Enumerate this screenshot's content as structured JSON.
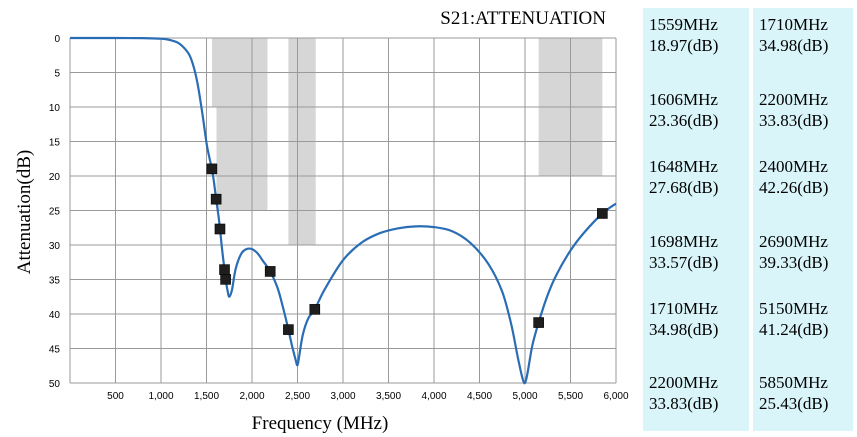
{
  "chart_data": {
    "type": "line",
    "title": "S21:ATTENUATION",
    "xlabel": "Frequency (MHz)",
    "ylabel": "Attenuation(dB)",
    "xlim": [
      0,
      6000
    ],
    "ylim": [
      0,
      50
    ],
    "y_inverted": true,
    "grid": true,
    "x_ticks": [
      "500",
      "1,000",
      "1,500",
      "2,000",
      "2,500",
      "3,000",
      "3,500",
      "4,000",
      "4,500",
      "5,000",
      "5,500",
      "6,000"
    ],
    "x_tick_values": [
      500,
      1000,
      1500,
      2000,
      2500,
      3000,
      3500,
      4000,
      4500,
      5000,
      5500,
      6000
    ],
    "y_ticks": [
      "0",
      "5",
      "10",
      "15",
      "20",
      "25",
      "30",
      "35",
      "40",
      "45",
      "50"
    ],
    "y_tick_values": [
      0,
      5,
      10,
      15,
      20,
      25,
      30,
      35,
      40,
      45,
      50
    ],
    "curve": {
      "x": [
        0,
        500,
        800,
        1000,
        1100,
        1200,
        1300,
        1350,
        1400,
        1450,
        1500,
        1530,
        1559,
        1580,
        1606,
        1630,
        1648,
        1670,
        1698,
        1710,
        1730,
        1750,
        1780,
        1820,
        1880,
        1940,
        2000,
        2060,
        2120,
        2200,
        2280,
        2340,
        2400,
        2440,
        2480,
        2500,
        2520,
        2560,
        2620,
        2690,
        2800,
        3000,
        3200,
        3400,
        3600,
        3800,
        4000,
        4200,
        4400,
        4600,
        4750,
        4850,
        4920,
        4970,
        5000,
        5030,
        5080,
        5150,
        5250,
        5350,
        5500,
        5650,
        5850,
        6000
      ],
      "y": [
        0,
        0,
        0.02,
        0.1,
        0.3,
        0.8,
        2.2,
        3.8,
        6.5,
        10.5,
        15.2,
        17.2,
        18.97,
        20.7,
        23.36,
        25.6,
        27.68,
        30.5,
        33.57,
        34.98,
        36.5,
        37.5,
        36.5,
        33.5,
        31.3,
        30.6,
        30.6,
        31.2,
        32.3,
        33.83,
        36.2,
        39.0,
        42.26,
        44.6,
        46.7,
        47.4,
        46.0,
        42.9,
        40.6,
        39.33,
        36.4,
        32.2,
        29.7,
        28.3,
        27.6,
        27.3,
        27.4,
        28.0,
        29.7,
        32.8,
        36.8,
        41.6,
        46.2,
        49.2,
        50.0,
        48.4,
        44.6,
        41.24,
        37.2,
        34.2,
        30.8,
        28.2,
        25.43,
        24.0
      ]
    },
    "markers": [
      {
        "x": 1559,
        "y": 18.97
      },
      {
        "x": 1606,
        "y": 23.36
      },
      {
        "x": 1648,
        "y": 27.68
      },
      {
        "x": 1698,
        "y": 33.57
      },
      {
        "x": 1710,
        "y": 34.98
      },
      {
        "x": 2200,
        "y": 33.83
      },
      {
        "x": 2400,
        "y": 42.26
      },
      {
        "x": 2690,
        "y": 39.33
      },
      {
        "x": 5150,
        "y": 41.24
      },
      {
        "x": 5850,
        "y": 25.43
      }
    ],
    "spec_masks": [
      {
        "x0": 1560,
        "x1": 1610,
        "ytop": 0,
        "ybottom": 10,
        "color": "#d6d6d6"
      },
      {
        "x0": 1610,
        "x1": 2170,
        "ytop": 0,
        "ybottom": 25,
        "color": "#d6d6d6"
      },
      {
        "x0": 2400,
        "x1": 2700,
        "ytop": 0,
        "ybottom": 30,
        "color": "#d6d6d6"
      },
      {
        "x0": 5150,
        "x1": 5850,
        "ytop": 0,
        "ybottom": 20,
        "color": "#d6d6d6"
      }
    ],
    "colors": {
      "curve": "#2a6db5",
      "marker": "#1e1e1e",
      "grid": "#9a9a9a",
      "panel": "#d9f5fa"
    }
  },
  "table": {
    "left": [
      {
        "freq": "1559MHz",
        "att": "18.97(dB)"
      },
      {
        "freq": "1606MHz",
        "att": "23.36(dB)"
      },
      {
        "freq": "1648MHz",
        "att": "27.68(dB)"
      },
      {
        "freq": "1698MHz",
        "att": "33.57(dB)"
      },
      {
        "freq": "1710MHz",
        "att": "34.98(dB)"
      },
      {
        "freq": "2200MHz",
        "att": "33.83(dB)"
      }
    ],
    "right": [
      {
        "freq": "1710MHz",
        "att": "34.98(dB)"
      },
      {
        "freq": "2200MHz",
        "att": "33.83(dB)"
      },
      {
        "freq": "2400MHz",
        "att": "42.26(dB)"
      },
      {
        "freq": "2690MHz",
        "att": "39.33(dB)"
      },
      {
        "freq": "5150MHz",
        "att": "41.24(dB)"
      },
      {
        "freq": "5850MHz",
        "att": "25.43(dB)"
      }
    ]
  }
}
